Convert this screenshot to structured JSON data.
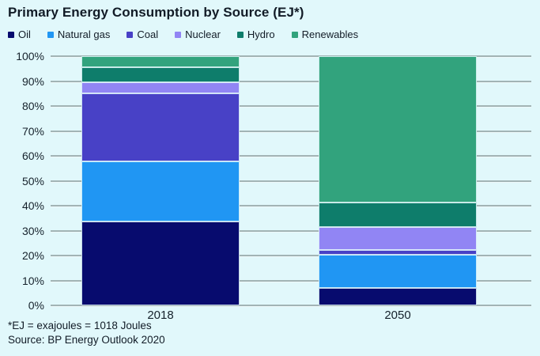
{
  "title": "Primary Energy Consumption by Source (EJ*)",
  "footnotes": {
    "ej_note": "*EJ = exajoules = 1018 Joules",
    "source": "Source: BP Energy Outlook 2020"
  },
  "chart_data": {
    "type": "bar",
    "stacked": true,
    "title": "Primary Energy Consumption by Source (EJ*)",
    "categories": [
      "2018",
      "2050"
    ],
    "series": [
      {
        "name": "Oil",
        "color": "#070b6e",
        "values": [
          33.5,
          7.0
        ]
      },
      {
        "name": "Natural gas",
        "color": "#2096f3",
        "values": [
          24.2,
          13.3
        ]
      },
      {
        "name": "Coal",
        "color": "#4841c6",
        "values": [
          27.3,
          2.0
        ]
      },
      {
        "name": "Nuclear",
        "color": "#9185f4",
        "values": [
          4.4,
          9.1
        ]
      },
      {
        "name": "Hydro",
        "color": "#0e7d6b",
        "values": [
          6.3,
          10.0
        ]
      },
      {
        "name": "Renewables",
        "color": "#32a37d",
        "values": [
          4.3,
          58.6
        ]
      }
    ],
    "xlabel": "",
    "ylabel": "",
    "ylim": [
      0,
      100
    ],
    "yticks": [
      "0%",
      "10%",
      "20%",
      "30%",
      "40%",
      "50%",
      "60%",
      "70%",
      "80%",
      "90%",
      "100%"
    ],
    "grid": true,
    "legend_position": "top",
    "background_color": "#e1f8fb",
    "gridline_color": "#a2b4b5",
    "text_color": "#121c27"
  }
}
